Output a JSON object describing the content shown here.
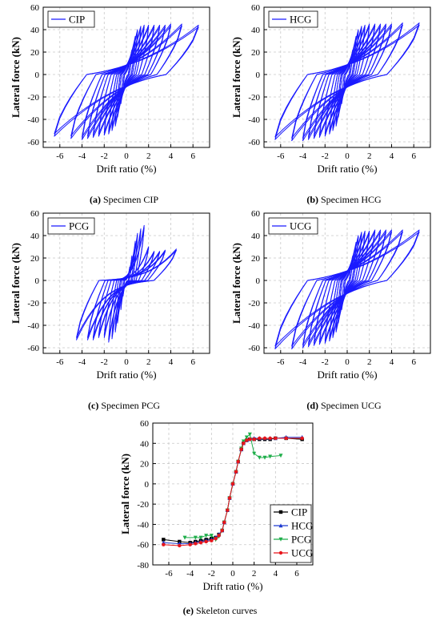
{
  "chart_data": [
    {
      "type": "line",
      "panel": "(a)",
      "caption_id": "(a)",
      "caption_text": "Specimen CIP",
      "xlabel": "Drift ratio (%)",
      "ylabel": "Lateral force (kN)",
      "xlim": [
        -7.5,
        7.5
      ],
      "ylim": [
        -65,
        60
      ],
      "xticks": [
        -6,
        -4,
        -2,
        0,
        2,
        4,
        6
      ],
      "yticks": [
        -60,
        -40,
        -20,
        0,
        20,
        40,
        60
      ],
      "grid": true,
      "legend": "top-left",
      "series": [
        {
          "name": "CIP",
          "color": "#1a1aff",
          "peaks_pos": [
            [
              0.3,
              12
            ],
            [
              0.5,
              22
            ],
            [
              0.8,
              34
            ],
            [
              1,
              40
            ],
            [
              1.3,
              43
            ],
            [
              1.6,
              44
            ],
            [
              2,
              44
            ],
            [
              2.5,
              44
            ],
            [
              3,
              44
            ],
            [
              3.5,
              44
            ],
            [
              4,
              45
            ],
            [
              5,
              45
            ],
            [
              6.5,
              44
            ]
          ],
          "peaks_neg": [
            [
              -0.3,
              -14
            ],
            [
              -0.5,
              -26
            ],
            [
              -0.8,
              -38
            ],
            [
              -1,
              -46
            ],
            [
              -1.3,
              -50
            ],
            [
              -1.6,
              -53
            ],
            [
              -2,
              -54
            ],
            [
              -2.5,
              -55
            ],
            [
              -3,
              -56
            ],
            [
              -3.5,
              -57
            ],
            [
              -4,
              -58
            ],
            [
              -5,
              -57
            ],
            [
              -6.5,
              -55
            ]
          ]
        }
      ]
    },
    {
      "type": "line",
      "panel": "(b)",
      "caption_id": "(b)",
      "caption_text": "Specimen HCG",
      "xlabel": "Drift ratio (%)",
      "ylabel": "Lateral force (kN)",
      "xlim": [
        -7.5,
        7.5
      ],
      "ylim": [
        -65,
        60
      ],
      "xticks": [
        -6,
        -4,
        -2,
        0,
        2,
        4,
        6
      ],
      "yticks": [
        -60,
        -40,
        -20,
        0,
        20,
        40,
        60
      ],
      "grid": true,
      "legend": "top-left",
      "series": [
        {
          "name": "HCG",
          "color": "#1a1aff",
          "peaks_pos": [
            [
              0.3,
              12
            ],
            [
              0.5,
              22
            ],
            [
              0.8,
              34
            ],
            [
              1,
              40
            ],
            [
              1.3,
              43
            ],
            [
              1.6,
              44
            ],
            [
              2,
              45
            ],
            [
              2.5,
              45
            ],
            [
              3,
              45
            ],
            [
              3.5,
              45
            ],
            [
              4,
              45
            ],
            [
              5,
              46
            ],
            [
              6.5,
              46
            ]
          ],
          "peaks_neg": [
            [
              -0.3,
              -14
            ],
            [
              -0.5,
              -26
            ],
            [
              -0.8,
              -38
            ],
            [
              -1,
              -46
            ],
            [
              -1.3,
              -50
            ],
            [
              -1.6,
              -53
            ],
            [
              -2,
              -55
            ],
            [
              -2.5,
              -56
            ],
            [
              -3,
              -57
            ],
            [
              -3.5,
              -58
            ],
            [
              -4,
              -59
            ],
            [
              -5,
              -59
            ],
            [
              -6.5,
              -58
            ]
          ]
        }
      ]
    },
    {
      "type": "line",
      "panel": "(c)",
      "caption_id": "(c)",
      "caption_text": "Specimen PCG",
      "xlabel": "Drift ratio (%)",
      "ylabel": "Lateral force (kN)",
      "xlim": [
        -7.5,
        7.5
      ],
      "ylim": [
        -65,
        60
      ],
      "xticks": [
        -6,
        -4,
        -2,
        0,
        2,
        4,
        6
      ],
      "yticks": [
        -60,
        -40,
        -20,
        0,
        20,
        40,
        60
      ],
      "grid": true,
      "legend": "top-left",
      "series": [
        {
          "name": "PCG",
          "color": "#1a1aff",
          "peaks_pos": [
            [
              0.3,
              12
            ],
            [
              0.5,
              22
            ],
            [
              0.8,
              35
            ],
            [
              1,
              42
            ],
            [
              1.3,
              46
            ],
            [
              1.6,
              49
            ],
            [
              2,
              30
            ],
            [
              2.5,
              26
            ],
            [
              3,
              26
            ],
            [
              3.5,
              27
            ],
            [
              4.5,
              28
            ]
          ],
          "peaks_neg": [
            [
              -0.3,
              -14
            ],
            [
              -0.5,
              -26
            ],
            [
              -0.8,
              -38
            ],
            [
              -1,
              -46
            ],
            [
              -1.3,
              -52
            ],
            [
              -1.6,
              -55
            ],
            [
              -2,
              -51
            ],
            [
              -2.5,
              -51
            ],
            [
              -3,
              -53
            ],
            [
              -3.5,
              -53
            ],
            [
              -4.5,
              -53
            ]
          ]
        }
      ]
    },
    {
      "type": "line",
      "panel": "(d)",
      "caption_id": "(d)",
      "caption_text": "Specimen UCG",
      "xlabel": "Drift ratio (%)",
      "ylabel": "Lateral force (kN)",
      "xlim": [
        -7.5,
        7.5
      ],
      "ylim": [
        -65,
        60
      ],
      "xticks": [
        -6,
        -4,
        -2,
        0,
        2,
        4,
        6
      ],
      "yticks": [
        -60,
        -40,
        -20,
        0,
        20,
        40,
        60
      ],
      "grid": true,
      "legend": "top-left",
      "series": [
        {
          "name": "UCG",
          "color": "#1a1aff",
          "peaks_pos": [
            [
              0.3,
              12
            ],
            [
              0.5,
              22
            ],
            [
              0.8,
              34
            ],
            [
              1,
              40
            ],
            [
              1.3,
              43
            ],
            [
              1.6,
              44
            ],
            [
              2,
              44
            ],
            [
              2.5,
              45
            ],
            [
              3,
              45
            ],
            [
              3.5,
              45
            ],
            [
              4,
              45
            ],
            [
              5,
              45
            ],
            [
              6.5,
              45
            ]
          ],
          "peaks_neg": [
            [
              -0.3,
              -14
            ],
            [
              -0.5,
              -26
            ],
            [
              -0.8,
              -38
            ],
            [
              -1,
              -46
            ],
            [
              -1.3,
              -51
            ],
            [
              -1.6,
              -54
            ],
            [
              -2,
              -56
            ],
            [
              -2.5,
              -57
            ],
            [
              -3,
              -58
            ],
            [
              -3.5,
              -59
            ],
            [
              -4,
              -60
            ],
            [
              -5,
              -61
            ],
            [
              -6.5,
              -61
            ]
          ]
        }
      ]
    },
    {
      "type": "line",
      "panel": "(e)",
      "caption_id": "(e)",
      "caption_text": "Skeleton curves",
      "xlabel": "Drift ratio (%)",
      "ylabel": "Lateral force (kN)",
      "xlim": [
        -7.5,
        7.5
      ],
      "ylim": [
        -80,
        60
      ],
      "xticks": [
        -6,
        -4,
        -2,
        0,
        2,
        4,
        6
      ],
      "yticks": [
        -80,
        -60,
        -40,
        -20,
        0,
        20,
        40,
        60
      ],
      "grid": true,
      "legend": "bottom-right",
      "series": [
        {
          "name": "CIP",
          "color": "#000000",
          "marker": "square",
          "x": [
            -6.5,
            -5,
            -4,
            -3.5,
            -3,
            -2.5,
            -2,
            -1.6,
            -1.3,
            -1,
            -0.8,
            -0.5,
            -0.3,
            0,
            0.3,
            0.5,
            0.8,
            1,
            1.3,
            1.6,
            2,
            2.5,
            3,
            3.5,
            4,
            5,
            6.5
          ],
          "y": [
            -55,
            -57,
            -58,
            -57,
            -56,
            -55,
            -54,
            -53,
            -50,
            -46,
            -38,
            -26,
            -14,
            0,
            12,
            22,
            34,
            40,
            43,
            44,
            44,
            44,
            44,
            44,
            45,
            45,
            44
          ]
        },
        {
          "name": "HCG",
          "color": "#1f3bd1",
          "marker": "triangle-up",
          "x": [
            -6.5,
            -5,
            -4,
            -3.5,
            -3,
            -2.5,
            -2,
            -1.6,
            -1.3,
            -1,
            -0.8,
            -0.5,
            -0.3,
            0,
            0.3,
            0.5,
            0.8,
            1,
            1.3,
            1.6,
            2,
            2.5,
            3,
            3.5,
            4,
            5,
            6.5
          ],
          "y": [
            -58,
            -59,
            -59,
            -58,
            -57,
            -56,
            -55,
            -53,
            -50,
            -46,
            -38,
            -26,
            -14,
            0,
            12,
            22,
            34,
            40,
            43,
            44,
            45,
            45,
            45,
            45,
            45,
            46,
            46
          ]
        },
        {
          "name": "PCG",
          "color": "#1fae4a",
          "marker": "triangle-down",
          "x": [
            -4.5,
            -3.5,
            -3,
            -2.5,
            -2,
            -1.6,
            -1.3,
            -1,
            -0.8,
            -0.5,
            -0.3,
            0,
            0.3,
            0.5,
            0.8,
            1,
            1.3,
            1.6,
            2,
            2.5,
            3,
            3.5,
            4.5
          ],
          "y": [
            -53,
            -53,
            -53,
            -51,
            -51,
            -55,
            -52,
            -46,
            -38,
            -26,
            -14,
            0,
            12,
            22,
            35,
            42,
            46,
            49,
            30,
            26,
            26,
            27,
            28
          ]
        },
        {
          "name": "UCG",
          "color": "#e8151b",
          "marker": "circle",
          "x": [
            -6.5,
            -5,
            -4,
            -3.5,
            -3,
            -2.5,
            -2,
            -1.6,
            -1.3,
            -1,
            -0.8,
            -0.5,
            -0.3,
            0,
            0.3,
            0.5,
            0.8,
            1,
            1.3,
            1.6,
            2,
            2.5,
            3,
            3.5,
            4,
            5,
            6.5
          ],
          "y": [
            -60,
            -61,
            -60,
            -59,
            -58,
            -57,
            -56,
            -54,
            -51,
            -46,
            -38,
            -26,
            -14,
            0,
            12,
            22,
            34,
            40,
            43,
            44,
            44,
            45,
            45,
            45,
            45,
            45,
            45
          ]
        }
      ]
    }
  ]
}
